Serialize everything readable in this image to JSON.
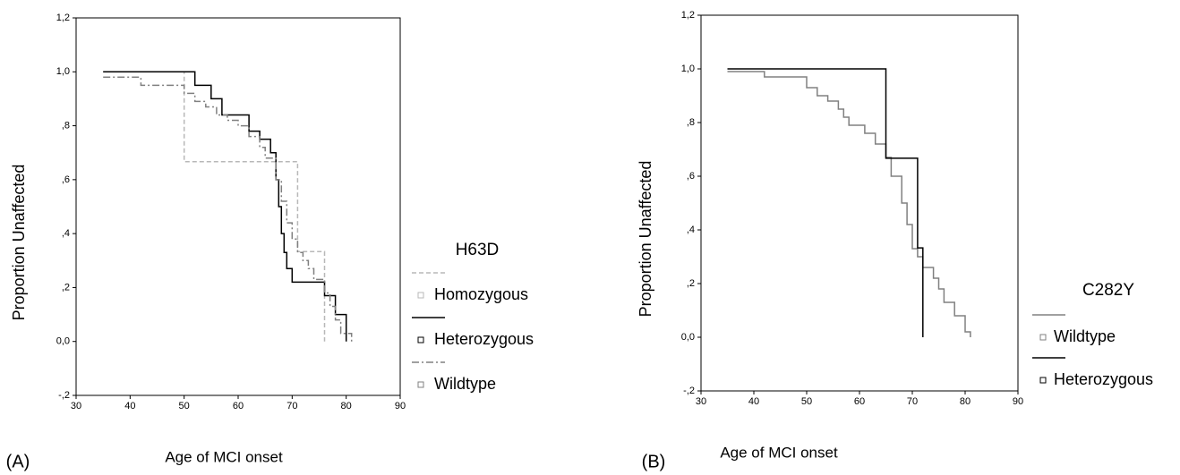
{
  "chart_data": [
    {
      "type": "line",
      "panel_label": "(A)",
      "xlabel": "Age of MCI onset",
      "ylabel": "Proportion Unaffected",
      "legend_title": "H63D",
      "xlim": [
        30,
        90
      ],
      "xticks": [
        30,
        40,
        50,
        60,
        70,
        80,
        90
      ],
      "ylim": [
        -0.2,
        1.2
      ],
      "yticks": [
        {
          "value": -0.2,
          "label": "-,2"
        },
        {
          "value": 0,
          "label": "0,0"
        },
        {
          "value": 0.2,
          "label": ",2"
        },
        {
          "value": 0.4,
          "label": ",4"
        },
        {
          "value": 0.6,
          "label": ",6"
        },
        {
          "value": 0.8,
          "label": ",8"
        },
        {
          "value": 1.0,
          "label": "1,0"
        },
        {
          "value": 1.2,
          "label": "1,2"
        }
      ],
      "series": [
        {
          "name": "Homozygous",
          "color": "#b8b8b8",
          "dash": "5,3",
          "x": [
            35,
            50,
            50,
            71,
            71,
            76,
            76
          ],
          "values": [
            1.0,
            1.0,
            0.667,
            0.667,
            0.333,
            0.333,
            0.0
          ]
        },
        {
          "name": "Heterozygous",
          "color": "#000000",
          "dash": "",
          "x": [
            35,
            52,
            52,
            55,
            55,
            57,
            57,
            62,
            62,
            64,
            64,
            66,
            66,
            67,
            67,
            67.5,
            67.5,
            68,
            68,
            68.5,
            68.5,
            69,
            69,
            70,
            70,
            76,
            76,
            78,
            78,
            80,
            80
          ],
          "values": [
            1.0,
            1.0,
            0.95,
            0.95,
            0.9,
            0.9,
            0.84,
            0.84,
            0.78,
            0.78,
            0.75,
            0.75,
            0.7,
            0.7,
            0.6,
            0.6,
            0.5,
            0.5,
            0.4,
            0.4,
            0.33,
            0.33,
            0.27,
            0.27,
            0.22,
            0.22,
            0.17,
            0.17,
            0.1,
            0.1,
            0.0
          ]
        },
        {
          "name": "Wildtype",
          "color": "#808080",
          "dash": "8,3,2,3",
          "x": [
            35,
            42,
            42,
            50,
            50,
            52,
            52,
            54,
            54,
            56,
            56,
            58,
            58,
            60,
            60,
            62,
            62,
            64,
            64,
            65,
            65,
            67,
            67,
            68,
            68,
            69,
            69,
            70,
            70,
            71,
            71,
            72,
            72,
            73,
            73,
            74,
            74,
            76,
            76,
            77,
            77,
            78,
            78,
            79,
            79,
            81,
            81
          ],
          "values": [
            0.98,
            0.98,
            0.95,
            0.95,
            0.92,
            0.92,
            0.89,
            0.89,
            0.87,
            0.87,
            0.84,
            0.84,
            0.82,
            0.82,
            0.8,
            0.8,
            0.76,
            0.76,
            0.72,
            0.72,
            0.68,
            0.68,
            0.6,
            0.6,
            0.52,
            0.52,
            0.44,
            0.44,
            0.38,
            0.38,
            0.33,
            0.33,
            0.3,
            0.3,
            0.27,
            0.27,
            0.23,
            0.23,
            0.18,
            0.18,
            0.13,
            0.13,
            0.08,
            0.08,
            0.03,
            0.03,
            0.0
          ]
        }
      ]
    },
    {
      "type": "line",
      "panel_label": "(B)",
      "xlabel": "Age of MCI onset",
      "ylabel": "Proportion Unaffected",
      "legend_title": "C282Y",
      "xlim": [
        30,
        90
      ],
      "xticks": [
        30,
        40,
        50,
        60,
        70,
        80,
        90
      ],
      "ylim": [
        -0.2,
        1.2
      ],
      "yticks": [
        {
          "value": -0.2,
          "label": "-,2"
        },
        {
          "value": 0,
          "label": "0,0"
        },
        {
          "value": 0.2,
          "label": ",2"
        },
        {
          "value": 0.4,
          "label": ",4"
        },
        {
          "value": 0.6,
          "label": ",6"
        },
        {
          "value": 0.8,
          "label": ",8"
        },
        {
          "value": 1.0,
          "label": "1,0"
        },
        {
          "value": 1.2,
          "label": "1,2"
        }
      ],
      "series": [
        {
          "name": "Wildtype",
          "color": "#808080",
          "dash": "",
          "x": [
            35,
            42,
            42,
            50,
            50,
            52,
            52,
            54,
            54,
            56,
            56,
            57,
            57,
            58,
            58,
            61,
            61,
            63,
            63,
            65,
            65,
            66,
            66,
            68,
            68,
            69,
            69,
            70,
            70,
            71,
            71,
            72,
            72,
            74,
            74,
            75,
            75,
            76,
            76,
            78,
            78,
            80,
            80,
            81,
            81
          ],
          "values": [
            0.99,
            0.99,
            0.97,
            0.97,
            0.93,
            0.93,
            0.9,
            0.9,
            0.88,
            0.88,
            0.85,
            0.85,
            0.82,
            0.82,
            0.79,
            0.79,
            0.76,
            0.76,
            0.72,
            0.72,
            0.67,
            0.67,
            0.6,
            0.6,
            0.5,
            0.5,
            0.42,
            0.42,
            0.33,
            0.33,
            0.3,
            0.3,
            0.26,
            0.26,
            0.22,
            0.22,
            0.18,
            0.18,
            0.13,
            0.13,
            0.08,
            0.08,
            0.02,
            0.02,
            0.0
          ]
        },
        {
          "name": "Heterozygous",
          "color": "#000000",
          "dash": "",
          "x": [
            35,
            65,
            65,
            71,
            71,
            72,
            72
          ],
          "values": [
            1.0,
            1.0,
            0.667,
            0.667,
            0.333,
            0.333,
            0.0
          ]
        }
      ]
    }
  ]
}
